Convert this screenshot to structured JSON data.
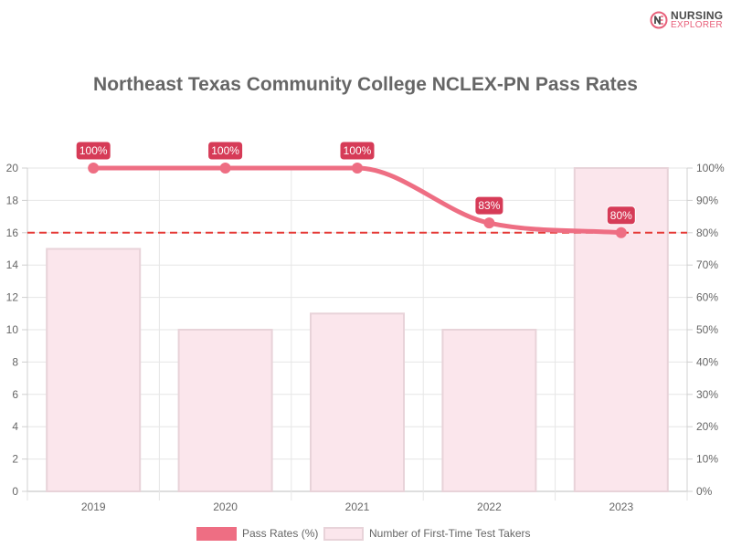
{
  "brand": {
    "line1": "NURSING",
    "line2": "EXPLORER",
    "primary_color": "#e8607a",
    "text_color": "#4a4a4a"
  },
  "chart_data": {
    "type": "bar",
    "title": "Northeast Texas Community College NCLEX-PN Pass Rates",
    "categories": [
      "2019",
      "2020",
      "2021",
      "2022",
      "2023"
    ],
    "series": [
      {
        "name": "Pass Rates (%)",
        "type": "line",
        "axis": "right",
        "values": [
          100,
          100,
          100,
          83,
          80
        ],
        "labels": [
          "100%",
          "100%",
          "100%",
          "83%",
          "80%"
        ],
        "color": "#ee6e83"
      },
      {
        "name": "Number of First-Time Test Takers",
        "type": "bar",
        "axis": "left",
        "values": [
          15,
          10,
          11,
          10,
          20
        ],
        "color": "#fbe6ec",
        "border_color": "#e8d3d9"
      }
    ],
    "y_left": {
      "ylim": [
        0,
        20
      ],
      "ticks": [
        "0",
        "2",
        "4",
        "6",
        "8",
        "10",
        "12",
        "14",
        "16",
        "18",
        "20"
      ]
    },
    "y_right": {
      "ylim": [
        0,
        100
      ],
      "ticks": [
        "0%",
        "10%",
        "20%",
        "30%",
        "40%",
        "50%",
        "60%",
        "70%",
        "80%",
        "90%",
        "100%"
      ]
    },
    "reference_line": {
      "value": 80,
      "axis": "right",
      "style": "dashed",
      "color": "#e53935"
    },
    "label_box_color": "#d63b57",
    "grid": true,
    "legend_position": "bottom"
  }
}
